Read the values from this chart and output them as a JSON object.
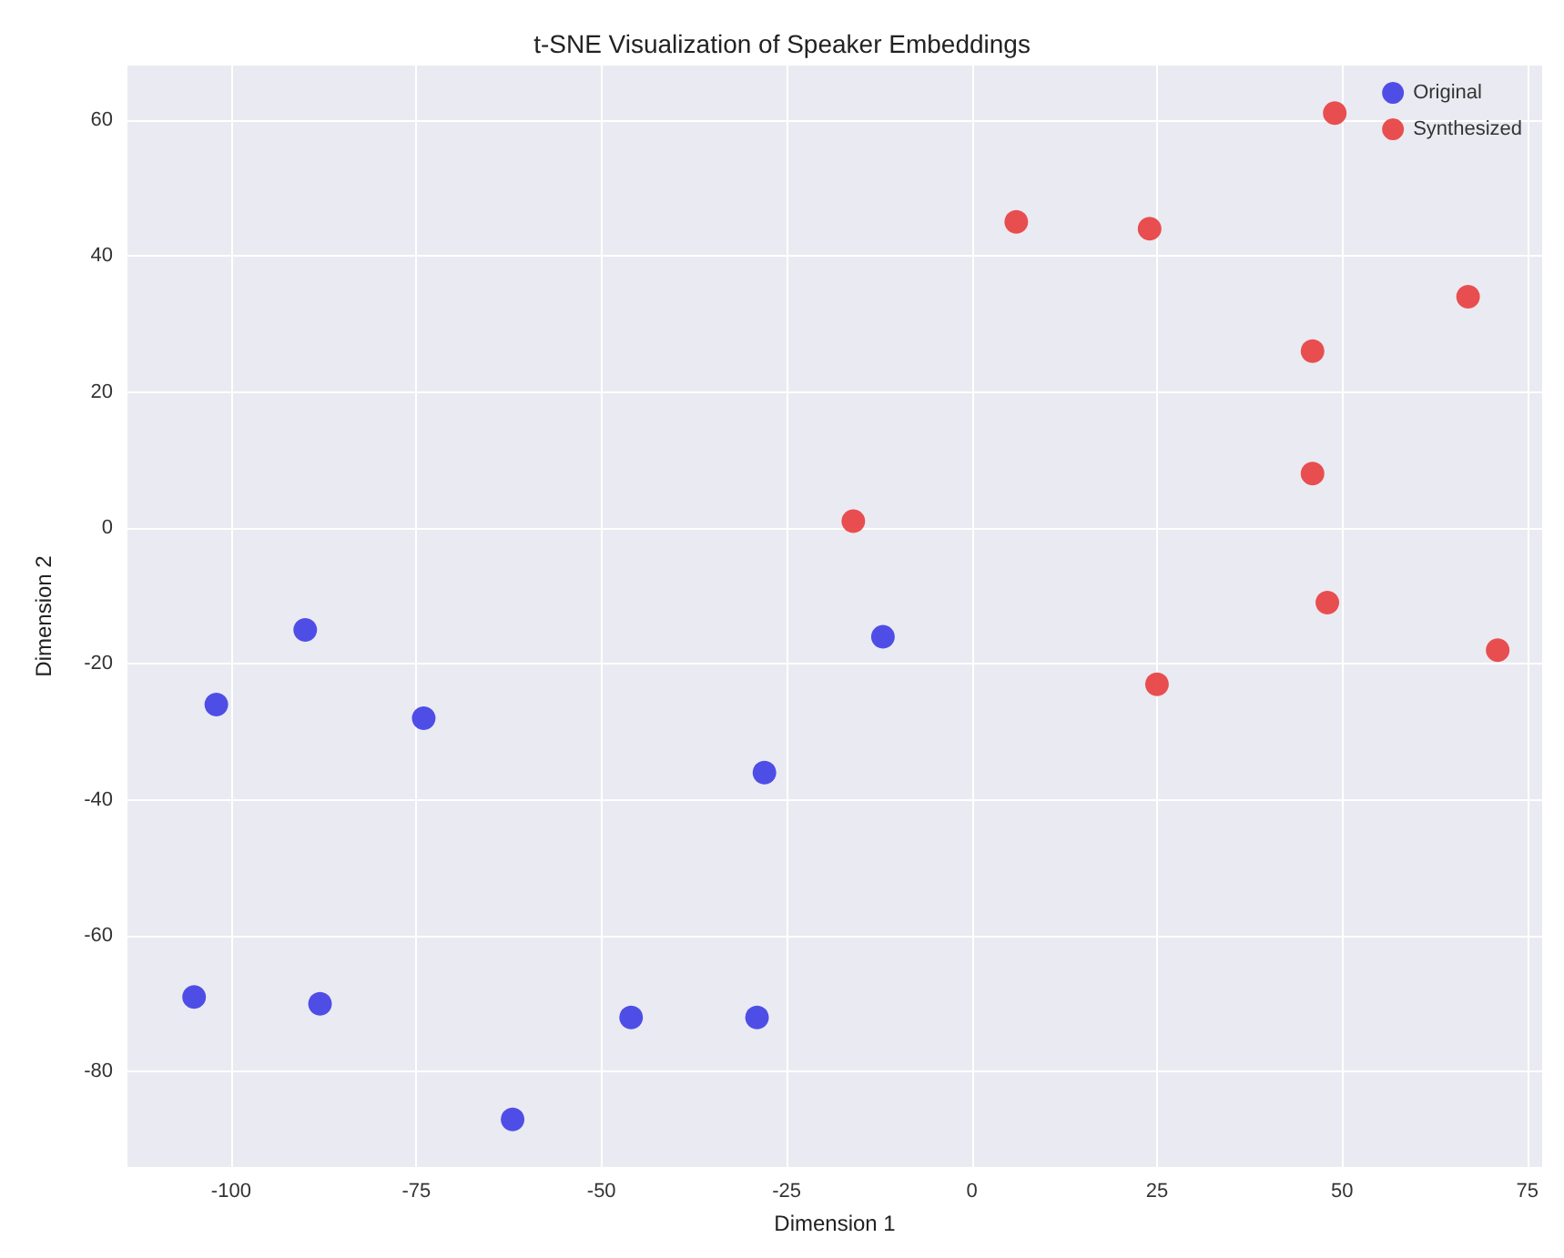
{
  "chart_data": {
    "type": "scatter",
    "title": "t-SNE Visualization of Speaker Embeddings",
    "xlabel": "Dimension 1",
    "ylabel": "Dimension 2",
    "series": [
      {
        "name": "Original",
        "color": "#4646e6",
        "x": [
          -102,
          -90,
          -74,
          -28,
          -12,
          -105,
          -88,
          -62,
          -46,
          -29
        ],
        "values": [
          -26,
          -15,
          -28,
          -36,
          -16,
          -69,
          -70,
          -87,
          -72,
          -72
        ]
      },
      {
        "name": "Synthesized",
        "color": "#e84646",
        "x": [
          -16,
          6,
          24,
          49,
          67,
          46,
          46,
          48,
          71,
          25
        ],
        "values": [
          1,
          45,
          44,
          61,
          34,
          26,
          8,
          -11,
          -18,
          -23
        ]
      }
    ],
    "xlim": [
      -114,
      77
    ],
    "xticks": [
      -100,
      -75,
      -50,
      -25,
      0,
      25,
      50,
      75
    ],
    "ylim": [
      -94,
      68
    ],
    "yticks": [
      -80,
      -60,
      -40,
      -20,
      0,
      20,
      40,
      60
    ],
    "grid": true,
    "legend": "top right",
    "marker": "circle"
  }
}
